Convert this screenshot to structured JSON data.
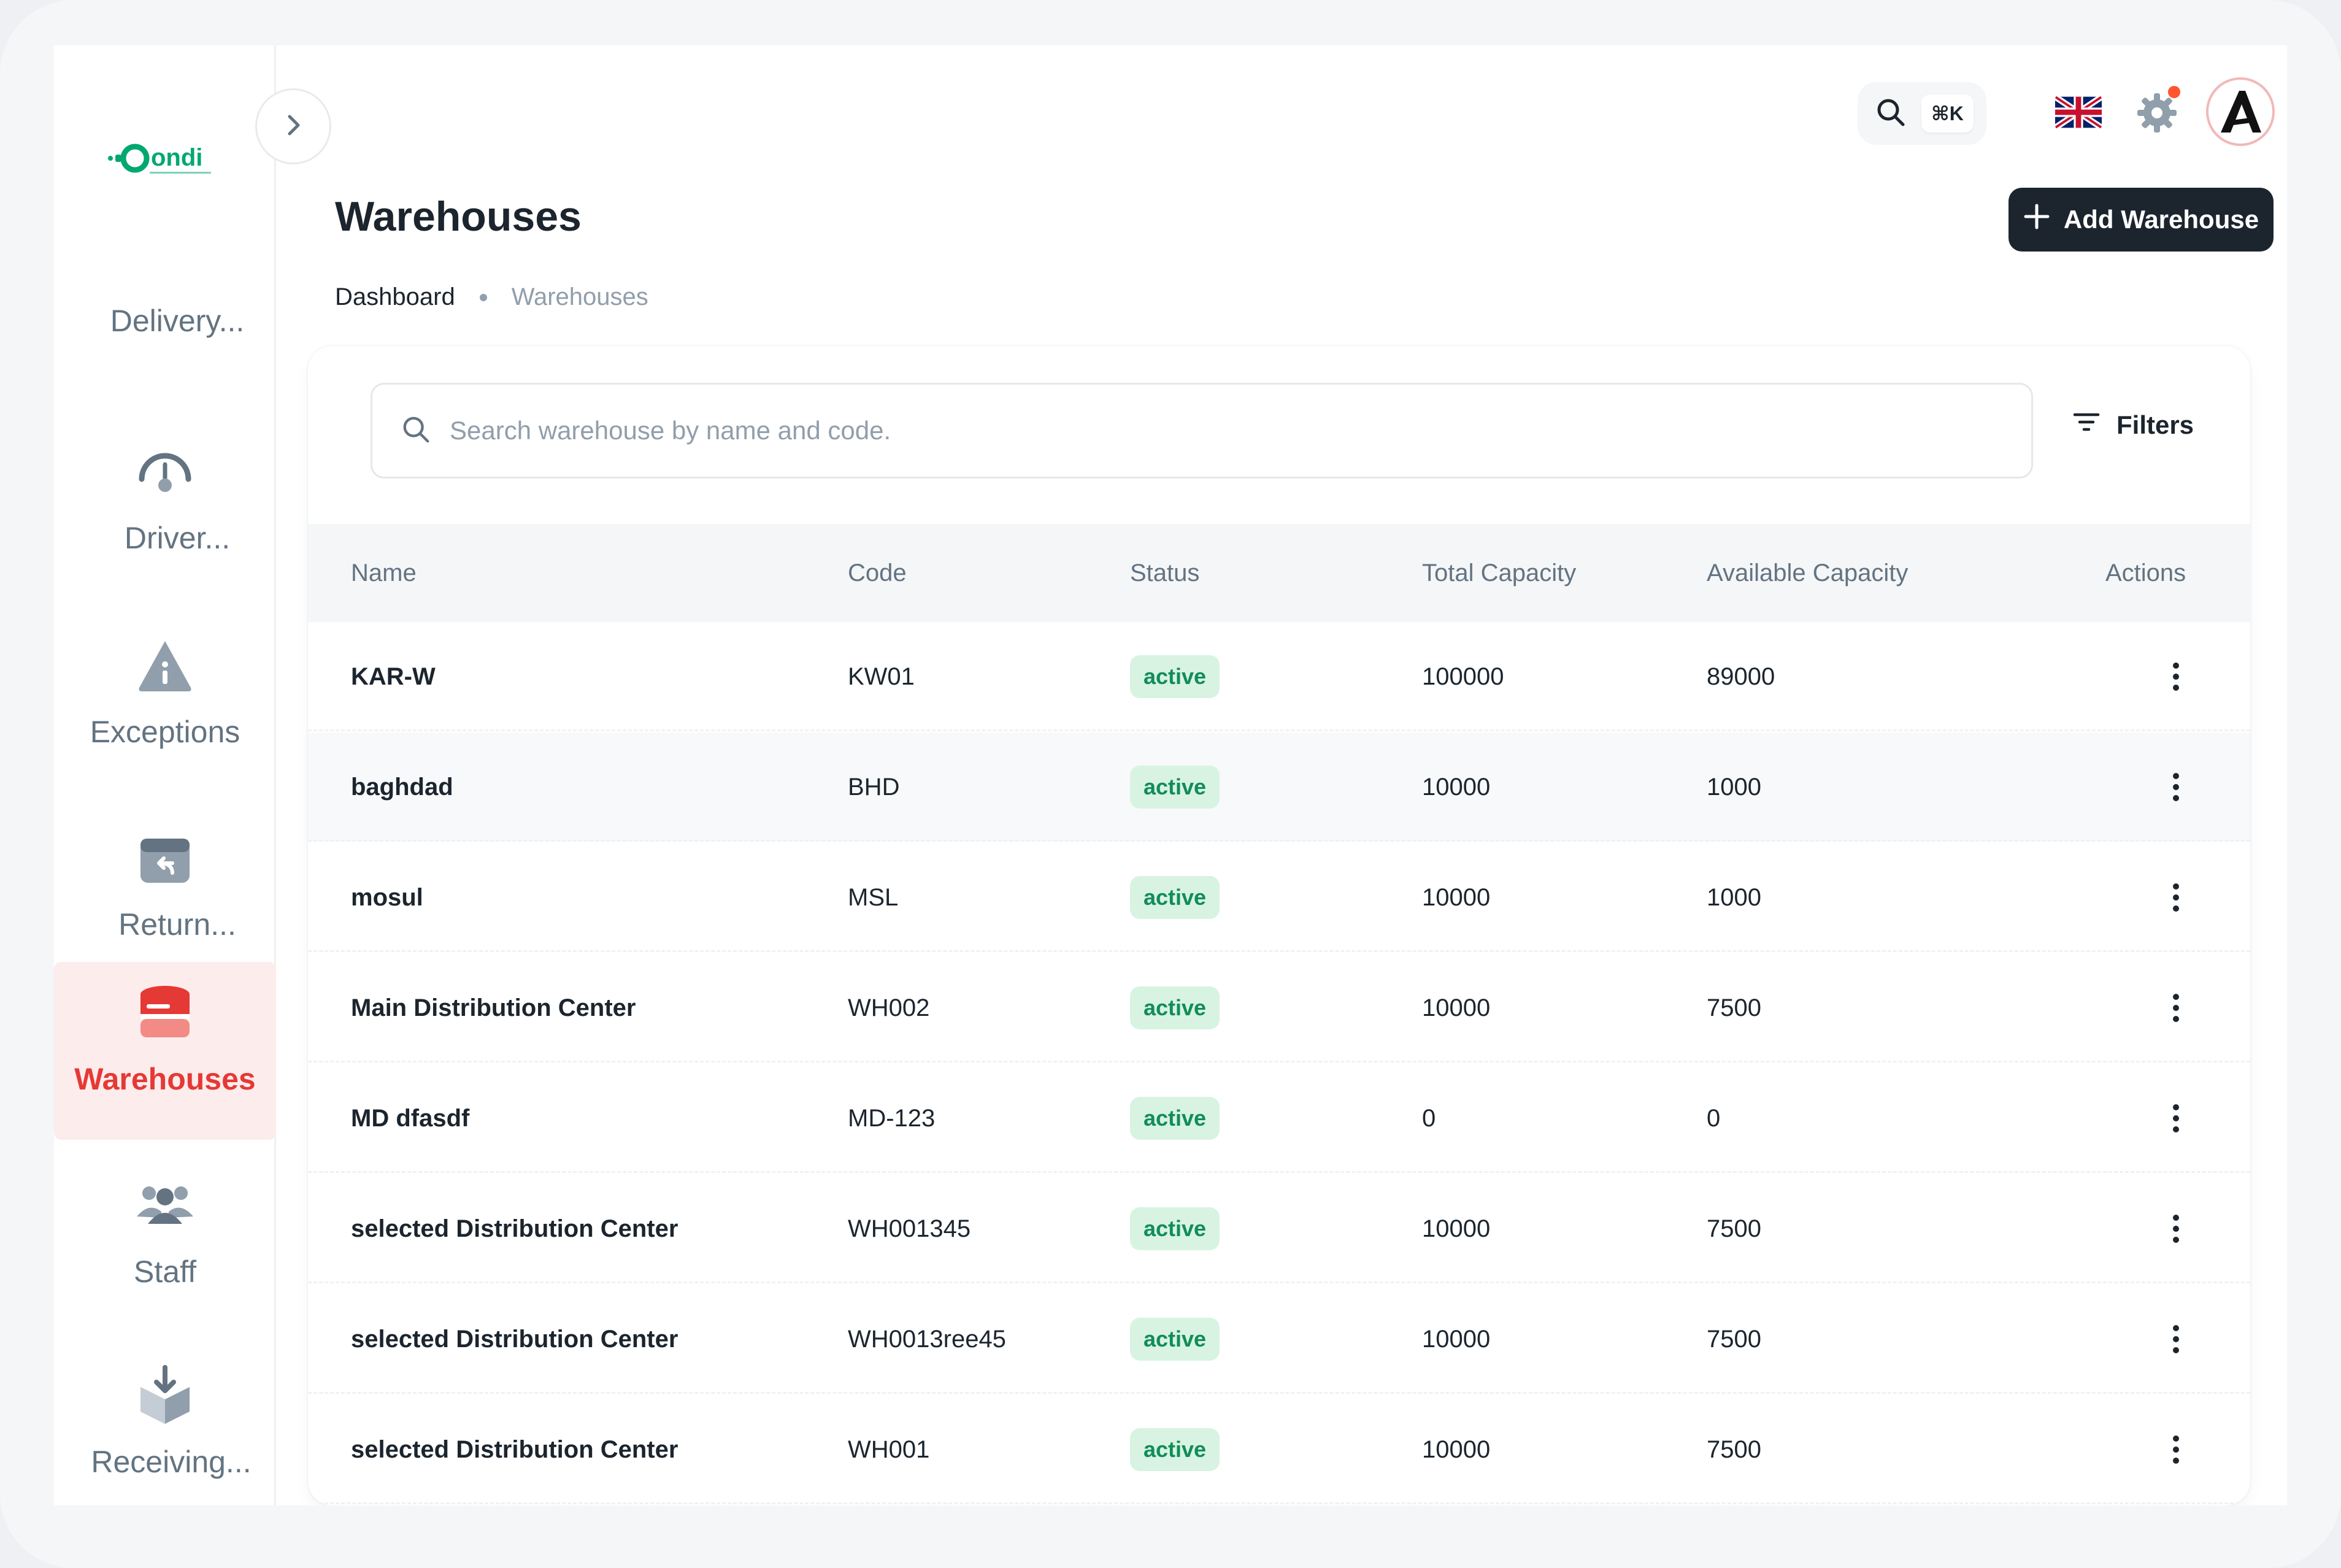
{
  "brand": {
    "logo_text": "ondi"
  },
  "sidebar": {
    "items": [
      {
        "label": "Delivery...",
        "icon": "label-only"
      },
      {
        "label": "Driver...",
        "icon": "gauge-icon"
      },
      {
        "label": "Exceptions",
        "icon": "info-triangle-icon"
      },
      {
        "label": "Return...",
        "icon": "return-box-icon"
      },
      {
        "label": "Warehouses",
        "icon": "warehouse-icon",
        "active": true
      },
      {
        "label": "Staff",
        "icon": "users-icon"
      },
      {
        "label": "Receiving...",
        "icon": "receive-box-icon"
      }
    ]
  },
  "topbar": {
    "search_shortcut": "⌘K",
    "language": "English (UK)"
  },
  "page": {
    "title": "Warehouses",
    "add_button": "Add Warehouse",
    "breadcrumb": [
      "Dashboard",
      "Warehouses"
    ]
  },
  "search": {
    "placeholder": "Search warehouse by name and code."
  },
  "filters_label": "Filters",
  "table": {
    "columns": [
      "Name",
      "Code",
      "Status",
      "Total Capacity",
      "Available Capacity",
      "Actions"
    ],
    "rows": [
      {
        "name": "KAR-W",
        "code": "KW01",
        "status": "active",
        "total": "100000",
        "available": "89000"
      },
      {
        "name": "baghdad",
        "code": "BHD",
        "status": "active",
        "total": "10000",
        "available": "1000"
      },
      {
        "name": "mosul",
        "code": "MSL",
        "status": "active",
        "total": "10000",
        "available": "1000"
      },
      {
        "name": "Main Distribution Center",
        "code": "WH002",
        "status": "active",
        "total": "10000",
        "available": "7500"
      },
      {
        "name": "MD dfasdf",
        "code": "MD-123",
        "status": "active",
        "total": "0",
        "available": "0"
      },
      {
        "name": "selected Distribution Center",
        "code": "WH001345",
        "status": "active",
        "total": "10000",
        "available": "7500"
      },
      {
        "name": "selected Distribution Center",
        "code": "WH0013ree45",
        "status": "active",
        "total": "10000",
        "available": "7500"
      },
      {
        "name": "selected Distribution Center",
        "code": "WH001",
        "status": "active",
        "total": "10000",
        "available": "7500"
      }
    ]
  },
  "colors": {
    "accent": "#e53935",
    "primary_dark": "#1c252e",
    "success_bg": "#d8f3e2",
    "success_text": "#118d57",
    "logo": "#00a870"
  }
}
